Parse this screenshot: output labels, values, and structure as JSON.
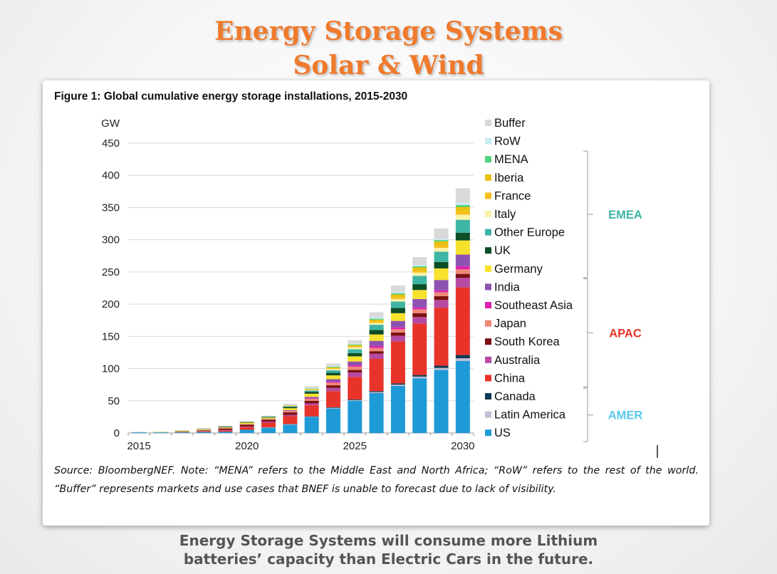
{
  "slide": {
    "title_line1": "Energy Storage Systems",
    "title_line2": "Solar & Wind",
    "caption_line1": "Energy Storage Systems will consume more Lithium",
    "caption_line2": "batteries’ capacity than Electric Cars in the future."
  },
  "figure": {
    "title": "Figure 1: Global cumulative energy storage installations, 2015-2030",
    "source": "Source: BloombergNEF. Note: “MENA” refers to the Middle East and North Africa; “RoW” refers to the rest of the world. “Buffer” represents markets and use cases that BNEF is unable to forecast due to lack of visibility."
  },
  "chart_data": {
    "type": "bar",
    "stacked": true,
    "title": "Figure 1: Global cumulative energy storage installations, 2015-2030",
    "ylabel": "GW",
    "xlabel": "",
    "ylim": [
      0,
      450
    ],
    "yticks": [
      0,
      50,
      100,
      150,
      200,
      250,
      300,
      350,
      400,
      450
    ],
    "x_tick_labels": [
      "2015",
      "2020",
      "2025",
      "2030"
    ],
    "categories": [
      "2015",
      "2016",
      "2017",
      "2018",
      "2019",
      "2020",
      "2021",
      "2022",
      "2023",
      "2024",
      "2025",
      "2026",
      "2027",
      "2028",
      "2029",
      "2030"
    ],
    "grid": "horizontal",
    "legend_position": "right",
    "series": [
      {
        "name": "US",
        "color": "#1e9ad6",
        "values": [
          1,
          1,
          1,
          1.5,
          2,
          5,
          8,
          13,
          25,
          38,
          50,
          62,
          73,
          85,
          98,
          112
        ]
      },
      {
        "name": "Latin America",
        "color": "#c8bcd8",
        "values": [
          0,
          0,
          0,
          0,
          0,
          0,
          0.5,
          0.5,
          0.5,
          1,
          1,
          1.5,
          2,
          2.5,
          3,
          4
        ]
      },
      {
        "name": "Canada",
        "color": "#0d3b52",
        "values": [
          0,
          0,
          0,
          0,
          0,
          0,
          0.5,
          0.5,
          0.5,
          1,
          1,
          1.5,
          2,
          2.5,
          3.5,
          5
        ]
      },
      {
        "name": "China",
        "color": "#e8332a",
        "values": [
          0,
          0,
          0.5,
          1,
          2,
          4,
          7,
          12,
          17,
          25,
          35,
          50,
          65,
          80,
          90,
          105
        ]
      },
      {
        "name": "Australia",
        "color": "#b54aa0",
        "values": [
          0,
          0,
          0,
          0.5,
          1,
          1,
          1.5,
          2,
          3,
          5,
          7,
          8,
          9,
          10,
          12,
          15
        ]
      },
      {
        "name": "South Korea",
        "color": "#7a1010",
        "values": [
          0,
          0,
          0.5,
          1,
          2,
          3,
          3,
          4,
          4,
          4,
          4,
          4,
          5,
          6,
          6,
          6
        ]
      },
      {
        "name": "Japan",
        "color": "#ee8877",
        "values": [
          0,
          0,
          0,
          0.5,
          1,
          1,
          1,
          2,
          3,
          4,
          5,
          5,
          5,
          6,
          6,
          7
        ]
      },
      {
        "name": "Southeast Asia",
        "color": "#e020b0",
        "values": [
          0,
          0,
          0,
          0,
          0,
          0,
          0,
          0.5,
          1,
          1.5,
          2,
          3,
          3,
          3,
          3,
          5
        ]
      },
      {
        "name": "India",
        "color": "#8d52b0",
        "values": [
          0,
          0,
          0,
          0,
          0,
          0,
          0.5,
          1,
          2,
          4,
          6,
          8,
          10,
          13,
          16,
          18
        ]
      },
      {
        "name": "Germany",
        "color": "#f6e12c",
        "values": [
          0,
          0.5,
          1,
          1,
          1,
          2,
          2,
          3,
          5,
          6,
          8,
          10,
          12,
          14,
          18,
          22
        ]
      },
      {
        "name": "UK",
        "color": "#0d4d26",
        "values": [
          0,
          0,
          0.5,
          0.5,
          1,
          1,
          1,
          2,
          3,
          4,
          5,
          7,
          8,
          9,
          10,
          12
        ]
      },
      {
        "name": "Other Europe",
        "color": "#3fb5a4",
        "values": [
          0,
          0,
          0,
          0,
          0,
          0,
          0.5,
          1,
          2,
          4,
          6,
          8,
          10,
          13,
          16,
          20
        ]
      },
      {
        "name": "Italy",
        "color": "#fbf2a9",
        "values": [
          0,
          0,
          0,
          0,
          0,
          0,
          0,
          0.5,
          1,
          2,
          3,
          3,
          4,
          5,
          6,
          8
        ]
      },
      {
        "name": "France",
        "color": "#f7bd1d",
        "values": [
          0,
          0,
          0,
          0,
          0,
          0,
          0,
          0.5,
          0.5,
          1,
          1.5,
          2,
          3,
          3,
          4,
          5
        ]
      },
      {
        "name": "Iberia",
        "color": "#e8c010",
        "values": [
          0,
          0,
          0,
          0,
          0,
          0,
          0,
          0.5,
          1,
          1.5,
          2,
          3,
          4,
          5,
          6,
          7
        ]
      },
      {
        "name": "MENA",
        "color": "#4fd17c",
        "values": [
          0,
          0,
          0,
          0,
          0,
          0,
          0,
          0,
          0.5,
          1,
          1,
          1.5,
          2,
          2,
          2,
          3
        ]
      },
      {
        "name": "RoW",
        "color": "#c8ecf6",
        "values": [
          0,
          0,
          0,
          0,
          0,
          0,
          0,
          0.5,
          0.5,
          1,
          1.5,
          2,
          2,
          2,
          2,
          3
        ]
      },
      {
        "name": "Buffer",
        "color": "#d9d9d9",
        "values": [
          1,
          1,
          1,
          1.5,
          1.5,
          1.5,
          1.5,
          2,
          3,
          4,
          5,
          8,
          10,
          12,
          16,
          23
        ]
      }
    ],
    "legend_order": [
      "Buffer",
      "RoW",
      "MENA",
      "Iberia",
      "France",
      "Italy",
      "Other Europe",
      "UK",
      "Germany",
      "India",
      "Southeast Asia",
      "Japan",
      "South Korea",
      "Australia",
      "China",
      "Canada",
      "Latin America",
      "US"
    ],
    "groups": [
      {
        "name": "EMEA",
        "color": "#3fb5a4",
        "first": "MENA",
        "last": "Germany"
      },
      {
        "name": "APAC",
        "color": "#e8332a",
        "first": "India",
        "last": "China"
      },
      {
        "name": "AMER",
        "color": "#5ac8ee",
        "first": "Canada",
        "last": "US"
      }
    ]
  }
}
